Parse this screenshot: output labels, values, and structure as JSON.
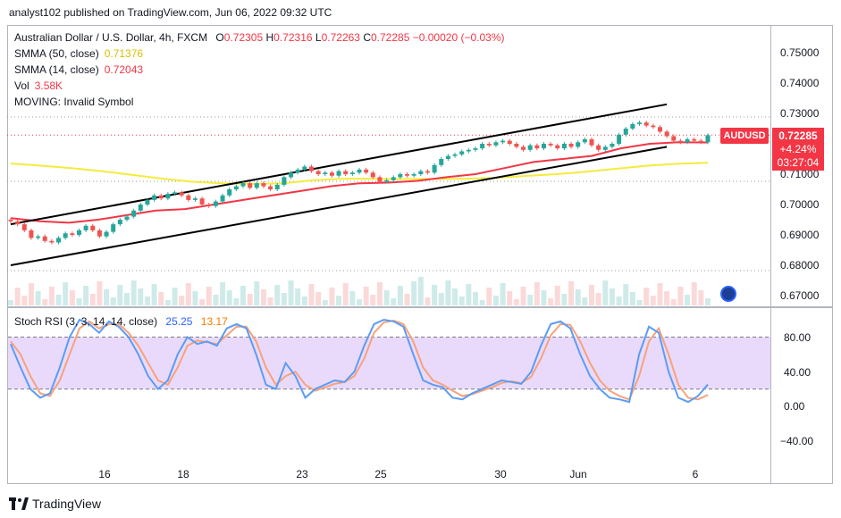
{
  "header": {
    "text": "analyst102 published on TradingView.com, Jun 06, 2022 09:32 UTC"
  },
  "main_legend": {
    "symbol": "Australian Dollar / U.S. Dollar, 4h, FXCM",
    "open_label": "O",
    "open": "0.72305",
    "high_label": "H",
    "high": "0.72316",
    "low_label": "L",
    "low": "0.72263",
    "close_label": "C",
    "close": "0.72285",
    "change": "−0.00020 (−0.03%)",
    "smma50_label": "SMMA (50, close)",
    "smma50": "0.71376",
    "smma14_label": "SMMA (14, close)",
    "smma14": "0.72043",
    "vol_label": "Vol",
    "vol": "3.58K",
    "moving": "MOVING: Invalid Symbol"
  },
  "stoch_legend": {
    "label": "Stoch RSI (3, 3, 14, 14, close)",
    "k": "25.25",
    "d": "13.17"
  },
  "price_tag": {
    "symbol": "AUDUSD",
    "price": "0.72285",
    "change": "+4.24%",
    "countdown": "03:27:04"
  },
  "price_axis": [
    "0.75000",
    "0.74000",
    "0.73000",
    "0.71000",
    "0.70000",
    "0.69000",
    "0.68000",
    "0.67000"
  ],
  "stoch_axis": [
    "80.00",
    "40.00",
    "0.00",
    "−40.00"
  ],
  "x_axis": [
    "16",
    "18",
    "23",
    "25",
    "30",
    "Jun",
    "6"
  ],
  "footer": {
    "brand": "TradingView"
  },
  "colors": {
    "up": "#26a69a",
    "down": "#ef5350",
    "smma50": "#f5eb3b",
    "smma14": "#f23645",
    "stoch_k": "#5b9cf6",
    "stoch_d": "#f7a27b",
    "band": "#e1cdfb"
  },
  "chart_data": {
    "type": "candlestick",
    "symbol": "AUDUSD",
    "timeframe": "4h",
    "ylim": [
      0.665,
      0.755
    ],
    "x_ticks": [
      "16",
      "18",
      "23",
      "25",
      "30",
      "Jun",
      "6"
    ],
    "closes": [
      0.6945,
      0.6935,
      0.6915,
      0.689,
      0.6895,
      0.688,
      0.6875,
      0.689,
      0.6905,
      0.69,
      0.6915,
      0.693,
      0.6915,
      0.6895,
      0.691,
      0.6935,
      0.695,
      0.696,
      0.698,
      0.7,
      0.7015,
      0.703,
      0.702,
      0.7035,
      0.704,
      0.703,
      0.7015,
      0.702,
      0.7,
      0.6995,
      0.701,
      0.703,
      0.705,
      0.706,
      0.707,
      0.7055,
      0.707,
      0.706,
      0.705,
      0.7065,
      0.709,
      0.7105,
      0.7115,
      0.7125,
      0.711,
      0.71,
      0.7105,
      0.7095,
      0.711,
      0.71,
      0.7105,
      0.7115,
      0.7105,
      0.709,
      0.7075,
      0.708,
      0.709,
      0.71,
      0.7095,
      0.71,
      0.711,
      0.7105,
      0.713,
      0.715,
      0.716,
      0.7165,
      0.7175,
      0.718,
      0.7185,
      0.72,
      0.7195,
      0.7205,
      0.721,
      0.72,
      0.719,
      0.718,
      0.7195,
      0.7185,
      0.72,
      0.7195,
      0.7185,
      0.72,
      0.719,
      0.7205,
      0.7215,
      0.7195,
      0.718,
      0.719,
      0.72,
      0.723,
      0.725,
      0.7265,
      0.727,
      0.726,
      0.7255,
      0.724,
      0.7225,
      0.721,
      0.7205,
      0.7215,
      0.721,
      0.7205,
      0.72285
    ],
    "smma50": [
      0.7135,
      0.7128,
      0.712,
      0.711,
      0.7098,
      0.7085,
      0.7075,
      0.707,
      0.7068,
      0.707,
      0.708,
      0.7085,
      0.7085,
      0.7084,
      0.7084,
      0.7085,
      0.7088,
      0.7094,
      0.71,
      0.7108,
      0.7118,
      0.7128,
      0.7134,
      0.71376
    ],
    "smma14": [
      0.6955,
      0.6945,
      0.694,
      0.695,
      0.6965,
      0.698,
      0.6985,
      0.7,
      0.7015,
      0.703,
      0.7045,
      0.706,
      0.707,
      0.7072,
      0.7078,
      0.709,
      0.71,
      0.712,
      0.714,
      0.715,
      0.716,
      0.7185,
      0.72,
      0.7205,
      0.72043
    ],
    "channel_upper": [
      [
        0,
        0.6935
      ],
      [
        96,
        0.733
      ]
    ],
    "channel_lower": [
      [
        0,
        0.68
      ],
      [
        96,
        0.719
      ]
    ],
    "stoch_rsi": {
      "ylim": [
        -60,
        110
      ],
      "band": [
        20,
        80
      ],
      "k": [
        72,
        45,
        20,
        10,
        15,
        45,
        80,
        100,
        95,
        85,
        98,
        92,
        80,
        60,
        35,
        20,
        30,
        60,
        80,
        72,
        75,
        70,
        90,
        95,
        90,
        60,
        25,
        20,
        50,
        35,
        10,
        20,
        25,
        30,
        28,
        40,
        70,
        95,
        100,
        98,
        92,
        60,
        30,
        25,
        22,
        10,
        8,
        15,
        20,
        25,
        30,
        28,
        26,
        40,
        70,
        95,
        98,
        90,
        60,
        35,
        20,
        10,
        8,
        5,
        60,
        92,
        85,
        40,
        10,
        5,
        12,
        25.25
      ],
      "d": [
        75,
        60,
        35,
        15,
        12,
        30,
        60,
        90,
        98,
        90,
        95,
        95,
        85,
        70,
        50,
        30,
        25,
        45,
        70,
        76,
        74,
        72,
        82,
        92,
        92,
        75,
        45,
        25,
        35,
        40,
        25,
        18,
        22,
        26,
        28,
        35,
        55,
        85,
        97,
        99,
        95,
        75,
        45,
        30,
        25,
        18,
        12,
        14,
        18,
        22,
        27,
        29,
        27,
        34,
        55,
        82,
        95,
        94,
        75,
        50,
        30,
        18,
        12,
        8,
        35,
        75,
        90,
        60,
        25,
        10,
        8,
        13.17
      ]
    }
  }
}
